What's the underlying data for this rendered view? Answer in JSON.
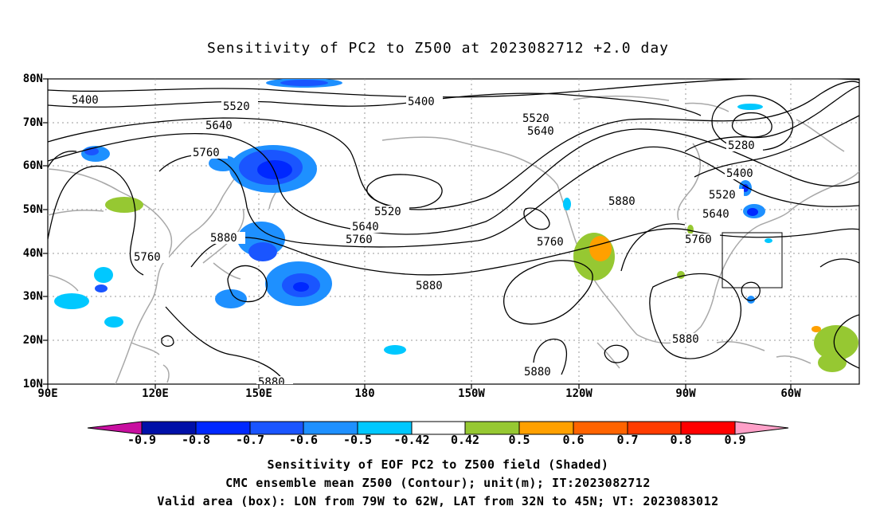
{
  "title": "Sensitivity of PC2 to Z500 at 2023082712 +2.0 day",
  "lat_labels": [
    "80N",
    "70N",
    "60N",
    "50N",
    "40N",
    "30N",
    "20N",
    "10N"
  ],
  "lon_labels": [
    "90E",
    "120E",
    "150E",
    "180",
    "150W",
    "120W",
    "90W",
    "60W"
  ],
  "contour_labels": [
    "5400",
    "5520",
    "5640",
    "5760",
    "5880",
    "5280"
  ],
  "colorbar": {
    "labels": [
      "-0.9",
      "-0.8",
      "-0.7",
      "-0.6",
      "-0.5",
      "-0.42",
      "0.42",
      "0.5",
      "0.6",
      "0.7",
      "0.8",
      "0.9"
    ],
    "colors": [
      "#c80fa0",
      "#0010a8",
      "#0028ff",
      "#1a55ff",
      "#1e90ff",
      "#00c8ff",
      "#ffffff",
      "#96c832",
      "#ffa000",
      "#ff6400",
      "#ff3c00",
      "#ff0000",
      "#ffa0c8"
    ]
  },
  "footer": {
    "line1": "Sensitivity of EOF PC2 to Z500 field (Shaded)",
    "line2": "CMC ensemble mean Z500 (Contour); unit(m); IT:2023082712",
    "line3": "Valid area (box): LON from 79W to 62W, LAT from 32N to 45N; VT: 2023083012"
  }
}
